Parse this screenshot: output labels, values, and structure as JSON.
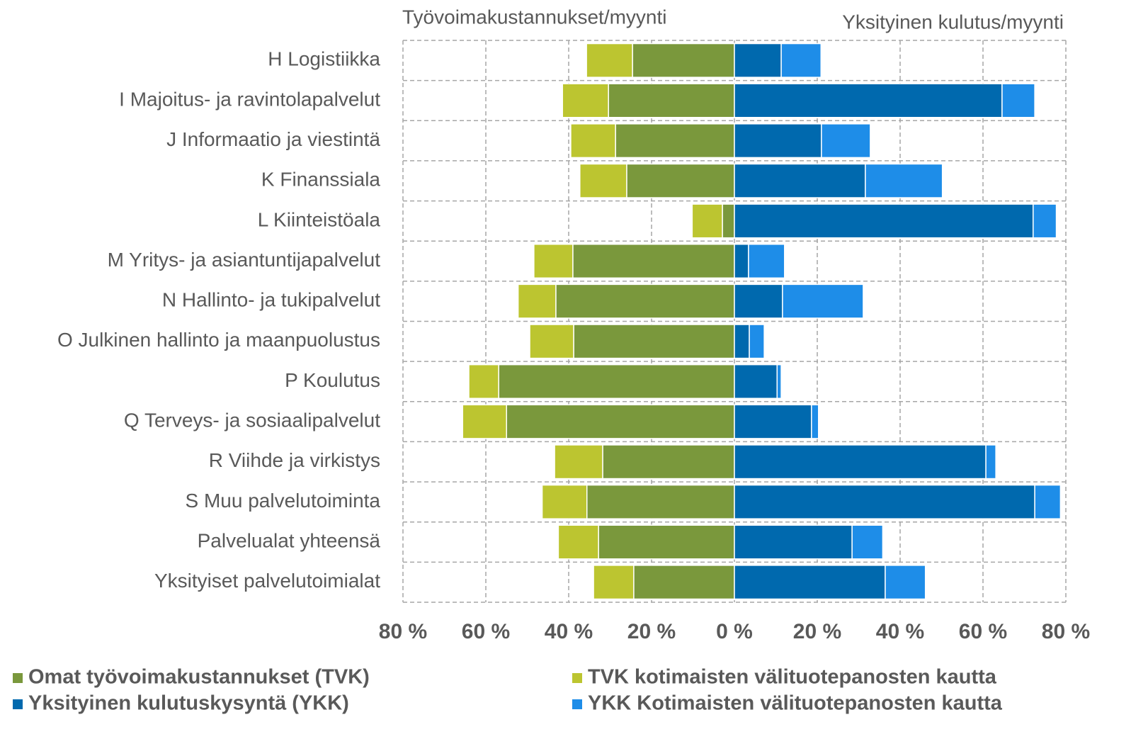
{
  "chart_data": {
    "type": "diverging-stacked-bar",
    "left_title": "Työvoimakustannukset/myynti",
    "right_title": "Yksityinen kulutus/myynti",
    "categories": [
      "H Logistiikka",
      "I Majoitus- ja ravintolapalvelut",
      "J Informaatio ja viestintä",
      "K Finanssiala",
      "L Kiinteistöala",
      "M Yritys- ja asiantuntijapalvelut",
      "N Hallinto- ja tukipalvelut",
      "O Julkinen hallinto ja maanpuolustus",
      "P Koulutus",
      "Q Terveys- ja sosiaalipalvelut",
      "R Viihde ja virkistys",
      "S Muu palvelutoiminta",
      "Palvelualat yhteensä",
      "Yksityiset palvelutoimialat"
    ],
    "series": [
      {
        "name": "Omat työvoimakustannukset (TVK)",
        "color": "#7a983c",
        "values": [
          -24.6,
          -30.4,
          -28.7,
          -26.0,
          -2.9,
          -39.0,
          -43.1,
          -38.8,
          -56.9,
          -55.0,
          -31.8,
          -35.6,
          -32.8,
          -24.3
        ]
      },
      {
        "name": "TVK kotimaisten välituotepanosten kautta",
        "color": "#bcc530",
        "values": [
          -11.1,
          -11.1,
          -10.8,
          -11.3,
          -7.3,
          -9.4,
          -9.1,
          -10.6,
          -7.2,
          -10.6,
          -11.6,
          -10.8,
          -9.7,
          -9.7
        ]
      },
      {
        "name": "Yksityinen kulutuskysyntä (YKK)",
        "color": "#0069ae",
        "values": [
          11.3,
          64.6,
          21.0,
          31.6,
          72.1,
          3.4,
          11.6,
          3.6,
          10.3,
          18.6,
          60.7,
          72.5,
          28.4,
          36.4
        ]
      },
      {
        "name": "YKK Kotimaisten välituotepanosten kautta",
        "color": "#1e8de8",
        "values": [
          9.6,
          7.9,
          11.8,
          18.6,
          5.6,
          8.7,
          19.5,
          3.6,
          1.0,
          1.7,
          2.4,
          6.2,
          7.4,
          9.7
        ]
      }
    ],
    "xlim": [
      -80,
      80
    ],
    "xticks": [
      {
        "value": -80,
        "label": "80 %"
      },
      {
        "value": -60,
        "label": "60 %"
      },
      {
        "value": -40,
        "label": "40 %"
      },
      {
        "value": -20,
        "label": "20 %"
      },
      {
        "value": 0,
        "label": "0 %"
      },
      {
        "value": 20,
        "label": "20 %"
      },
      {
        "value": 40,
        "label": "40 %"
      },
      {
        "value": 60,
        "label": "60 %"
      },
      {
        "value": 80,
        "label": "80 %"
      }
    ],
    "grid": true
  }
}
